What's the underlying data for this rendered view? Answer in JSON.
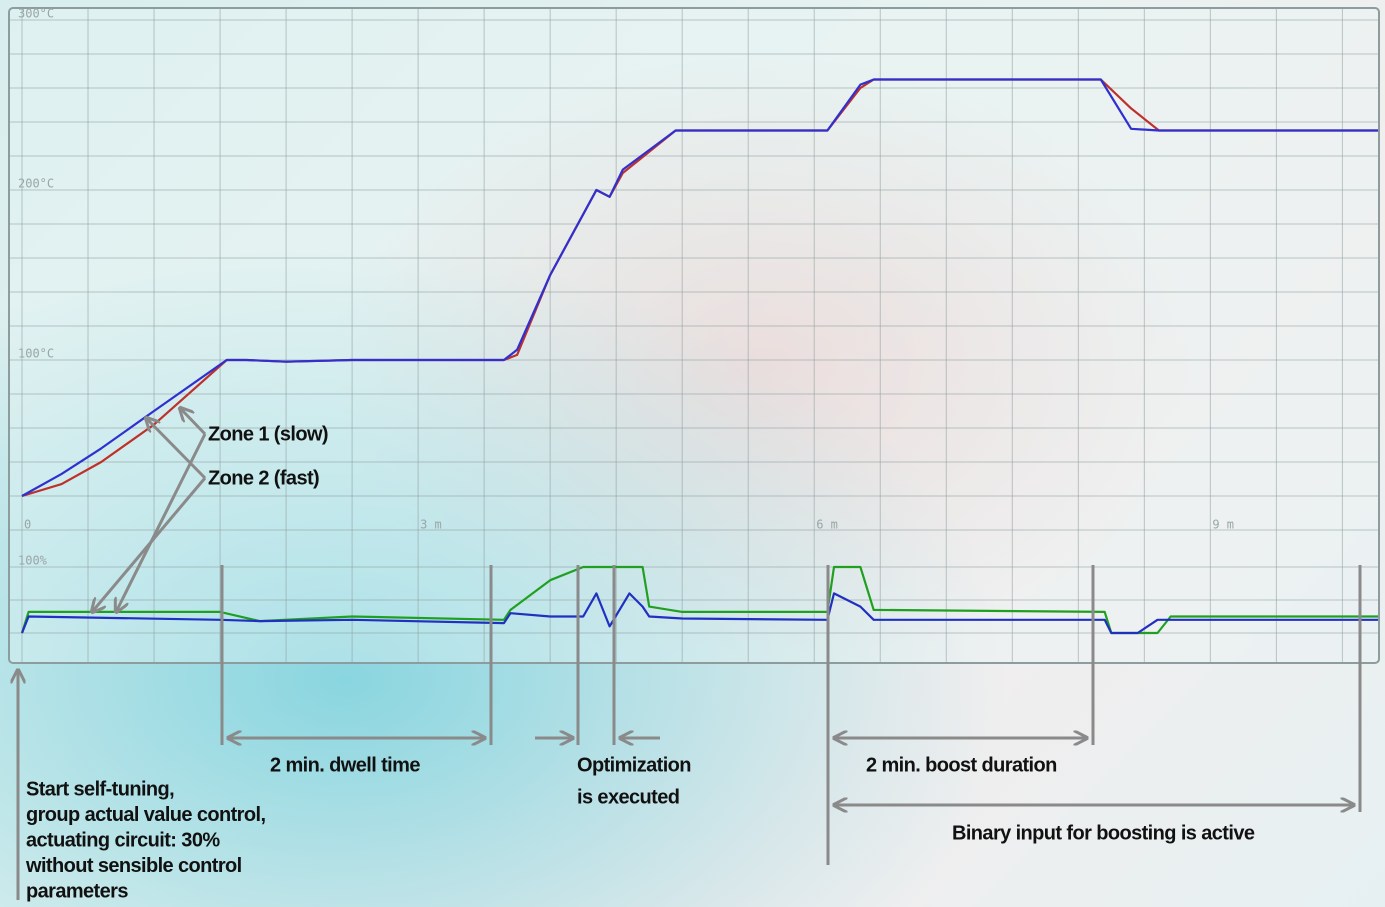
{
  "chart_data": [
    {
      "type": "line",
      "x": [
        0,
        0.3,
        0.6,
        1.0,
        1.55,
        1.7,
        2.0,
        2.5,
        3.65,
        3.75,
        4.0,
        4.35,
        4.45,
        4.55,
        4.95,
        6.1,
        6.35,
        6.45,
        8.17,
        8.4,
        8.61,
        10.27
      ],
      "series": [
        {
          "name": "Zone 1 (slow)",
          "color": "#c0302a",
          "values": [
            20,
            27,
            40,
            62,
            100,
            100,
            99,
            100,
            100,
            103,
            150,
            200,
            196,
            210,
            235,
            235,
            260,
            265,
            265,
            248,
            235,
            235
          ]
        },
        {
          "name": "Zone 2 (fast)",
          "color": "#3030d0",
          "values": [
            20,
            33,
            48,
            70,
            100,
            100,
            99,
            100,
            100,
            106,
            150,
            200,
            196,
            212,
            235,
            235,
            262,
            265,
            265,
            236,
            235,
            235
          ]
        }
      ],
      "xlim": [
        0,
        10.3
      ],
      "xticks": [
        0,
        {
          "value": 0.5,
          "label": null
        },
        {
          "value": 1,
          "label": null
        },
        {
          "value": 1.5,
          "label": null
        },
        {
          "value": 2,
          "label": null
        },
        {
          "value": 2.5,
          "label": null
        },
        {
          "value": 3,
          "label": "3 m"
        },
        {
          "value": 3.5,
          "label": null
        },
        {
          "value": 4,
          "label": null
        },
        {
          "value": 4.5,
          "label": null
        },
        {
          "value": 5,
          "label": null
        },
        {
          "value": 5.5,
          "label": null
        },
        {
          "value": 6,
          "label": "6 m"
        },
        {
          "value": 6.5,
          "label": null
        },
        {
          "value": 7,
          "label": null
        },
        {
          "value": 7.5,
          "label": null
        },
        {
          "value": 8,
          "label": null
        },
        {
          "value": 8.5,
          "label": null
        },
        {
          "value": 9,
          "label": "9 m"
        },
        {
          "value": 9.5,
          "label": null
        },
        {
          "value": 10,
          "label": null
        }
      ],
      "ylim": [
        0,
        300
      ],
      "yticks": [
        {
          "value": 0,
          "label": null
        },
        {
          "value": 20,
          "label": null
        },
        {
          "value": 40,
          "label": null
        },
        {
          "value": 60,
          "label": null
        },
        {
          "value": 80,
          "label": null
        },
        {
          "value": 100,
          "label": "100°C"
        },
        {
          "value": 120,
          "label": null
        },
        {
          "value": 140,
          "label": null
        },
        {
          "value": 160,
          "label": null
        },
        {
          "value": 180,
          "label": null
        },
        {
          "value": 200,
          "label": "200°C"
        },
        {
          "value": 220,
          "label": null
        },
        {
          "value": 240,
          "label": null
        },
        {
          "value": 260,
          "label": null
        },
        {
          "value": 280,
          "label": null
        },
        {
          "value": 300,
          "label": "300°C"
        }
      ],
      "grid": true
    },
    {
      "type": "line",
      "x": [
        0,
        0.05,
        1.5,
        1.8,
        2.5,
        3.65,
        3.7,
        4.0,
        4.25,
        4.35,
        4.45,
        4.6,
        4.7,
        4.75,
        5.0,
        6.1,
        6.15,
        6.35,
        6.45,
        8.2,
        8.25,
        8.45,
        8.6,
        8.7,
        10.27
      ],
      "series": [
        {
          "color": "#20a020",
          "values": [
            0,
            32,
            32,
            18,
            25,
            20,
            35,
            80,
            100,
            100,
            100,
            100,
            100,
            40,
            32,
            32,
            100,
            100,
            35,
            32,
            0,
            0,
            0,
            25,
            25
          ]
        },
        {
          "color": "#2030c0",
          "values": [
            0,
            25,
            20,
            18,
            20,
            15,
            30,
            25,
            25,
            60,
            10,
            60,
            40,
            25,
            22,
            20,
            60,
            40,
            20,
            20,
            0,
            0,
            20,
            20,
            20
          ]
        }
      ],
      "xlim": [
        0,
        10.3
      ],
      "ylim": [
        0,
        100
      ],
      "yticks": [
        {
          "value": 0,
          "label": null
        },
        {
          "value": 50,
          "label": null
        },
        {
          "value": 100,
          "label": "100%"
        }
      ],
      "grid": true
    }
  ],
  "annotations": [
    {
      "text": [
        "Zone 1 (slow)"
      ]
    },
    {
      "text": [
        "Zone 2 (fast)"
      ]
    },
    {
      "text": [
        "2 min. dwell time"
      ]
    },
    {
      "text": [
        "Optimization",
        "is executed"
      ]
    },
    {
      "text": [
        "2 min. boost duration"
      ]
    },
    {
      "text": [
        "Binary input for boosting is active"
      ]
    },
    {
      "text": [
        "Start self-tuning,",
        "group actual value control,",
        "actuating circuit: 30%",
        "without sensible control",
        "parameters"
      ]
    }
  ]
}
